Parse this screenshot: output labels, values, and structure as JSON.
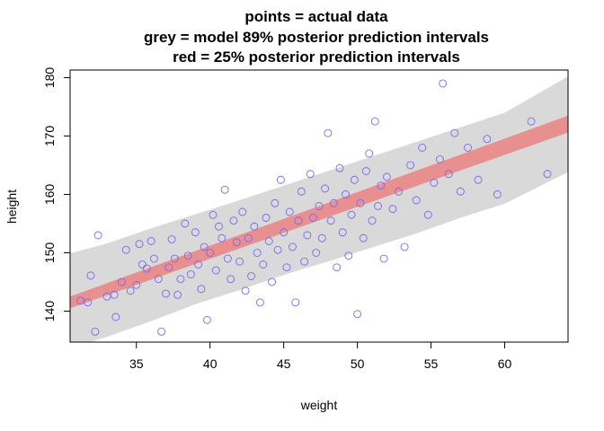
{
  "chart_data": {
    "type": "scatter",
    "title_lines": [
      "points = actual data",
      "grey = model 89% posterior prediction intervals",
      "red = 25% posterior prediction intervals"
    ],
    "xlabel": "weight",
    "ylabel": "height",
    "xlim": [
      30.5,
      64.3
    ],
    "ylim": [
      134.7,
      181.3
    ],
    "xticks": [
      35,
      40,
      45,
      50,
      55,
      60
    ],
    "yticks": [
      140,
      150,
      160,
      170,
      180
    ],
    "grid": false,
    "colors": {
      "points": "#7b68ee",
      "interval_89": "#d9d9d9",
      "interval_25": "#e88f8f"
    },
    "interval_89": {
      "x": [
        30.5,
        33,
        36,
        39,
        42,
        45,
        48,
        51,
        54,
        57,
        60,
        64.3
      ],
      "lower": [
        133.6,
        135.6,
        138.3,
        141.2,
        143.6,
        146.2,
        148.5,
        150.9,
        153.3,
        156.0,
        158.4,
        163.8
      ],
      "upper": [
        149.9,
        151.6,
        154.2,
        156.6,
        159.0,
        161.5,
        164.0,
        166.5,
        169.0,
        171.5,
        174.0,
        180.2
      ]
    },
    "interval_25": {
      "x": [
        30.5,
        64.3
      ],
      "lower": [
        140.5,
        170.6
      ],
      "upper": [
        142.5,
        173.5
      ]
    },
    "points": [
      [
        31.2,
        141.8
      ],
      [
        31.7,
        141.5
      ],
      [
        31.9,
        146.1
      ],
      [
        32.2,
        136.5
      ],
      [
        32.4,
        153.0
      ],
      [
        33.0,
        142.5
      ],
      [
        33.5,
        142.8
      ],
      [
        33.6,
        139.0
      ],
      [
        34.0,
        145.0
      ],
      [
        34.3,
        150.5
      ],
      [
        34.6,
        143.5
      ],
      [
        35.0,
        144.5
      ],
      [
        35.2,
        151.5
      ],
      [
        35.4,
        148.0
      ],
      [
        35.7,
        147.3
      ],
      [
        36.0,
        152.0
      ],
      [
        36.2,
        149.0
      ],
      [
        36.5,
        145.5
      ],
      [
        36.7,
        136.5
      ],
      [
        37.0,
        143.0
      ],
      [
        37.2,
        147.5
      ],
      [
        37.4,
        152.3
      ],
      [
        37.6,
        149.0
      ],
      [
        37.8,
        142.8
      ],
      [
        38.0,
        145.5
      ],
      [
        38.3,
        155.0
      ],
      [
        38.5,
        149.5
      ],
      [
        38.7,
        146.3
      ],
      [
        39.0,
        153.5
      ],
      [
        39.2,
        148.0
      ],
      [
        39.4,
        143.8
      ],
      [
        39.6,
        151.0
      ],
      [
        39.8,
        138.5
      ],
      [
        40.0,
        150.0
      ],
      [
        40.2,
        156.5
      ],
      [
        40.4,
        147.0
      ],
      [
        40.6,
        154.5
      ],
      [
        40.8,
        152.5
      ],
      [
        41.0,
        160.8
      ],
      [
        41.2,
        149.0
      ],
      [
        41.4,
        145.5
      ],
      [
        41.6,
        155.5
      ],
      [
        41.8,
        151.8
      ],
      [
        42.0,
        148.5
      ],
      [
        42.2,
        157.0
      ],
      [
        42.4,
        143.5
      ],
      [
        42.6,
        152.5
      ],
      [
        42.8,
        146.0
      ],
      [
        43.0,
        154.5
      ],
      [
        43.2,
        150.0
      ],
      [
        43.4,
        141.5
      ],
      [
        43.6,
        148.0
      ],
      [
        43.8,
        156.0
      ],
      [
        44.0,
        152.0
      ],
      [
        44.2,
        145.0
      ],
      [
        44.4,
        158.5
      ],
      [
        44.6,
        150.5
      ],
      [
        44.8,
        162.5
      ],
      [
        45.0,
        153.5
      ],
      [
        45.2,
        147.5
      ],
      [
        45.4,
        157.0
      ],
      [
        45.6,
        151.0
      ],
      [
        45.8,
        141.5
      ],
      [
        46.0,
        155.5
      ],
      [
        46.2,
        160.5
      ],
      [
        46.4,
        148.5
      ],
      [
        46.6,
        153.0
      ],
      [
        46.8,
        163.5
      ],
      [
        47.0,
        156.0
      ],
      [
        47.2,
        150.0
      ],
      [
        47.4,
        158.0
      ],
      [
        47.6,
        152.5
      ],
      [
        47.8,
        161.0
      ],
      [
        48.0,
        170.5
      ],
      [
        48.2,
        155.5
      ],
      [
        48.4,
        158.5
      ],
      [
        48.6,
        147.5
      ],
      [
        48.8,
        164.5
      ],
      [
        49.0,
        153.5
      ],
      [
        49.2,
        160.0
      ],
      [
        49.4,
        149.5
      ],
      [
        49.6,
        156.5
      ],
      [
        49.8,
        162.5
      ],
      [
        50.0,
        139.5
      ],
      [
        50.2,
        158.5
      ],
      [
        50.4,
        152.5
      ],
      [
        50.6,
        164.0
      ],
      [
        50.8,
        167.0
      ],
      [
        51.0,
        155.5
      ],
      [
        51.2,
        172.5
      ],
      [
        51.4,
        158.0
      ],
      [
        51.6,
        161.5
      ],
      [
        51.8,
        149.0
      ],
      [
        52.0,
        163.0
      ],
      [
        52.4,
        157.5
      ],
      [
        52.8,
        160.5
      ],
      [
        53.2,
        151.0
      ],
      [
        53.6,
        165.0
      ],
      [
        54.0,
        159.0
      ],
      [
        54.4,
        168.0
      ],
      [
        54.8,
        156.5
      ],
      [
        55.2,
        162.0
      ],
      [
        55.6,
        166.0
      ],
      [
        55.8,
        179.0
      ],
      [
        56.2,
        163.5
      ],
      [
        56.6,
        170.5
      ],
      [
        57.0,
        160.5
      ],
      [
        57.5,
        168.0
      ],
      [
        58.2,
        162.5
      ],
      [
        58.8,
        169.5
      ],
      [
        59.5,
        160.0
      ],
      [
        61.8,
        172.5
      ],
      [
        62.9,
        163.5
      ]
    ]
  }
}
